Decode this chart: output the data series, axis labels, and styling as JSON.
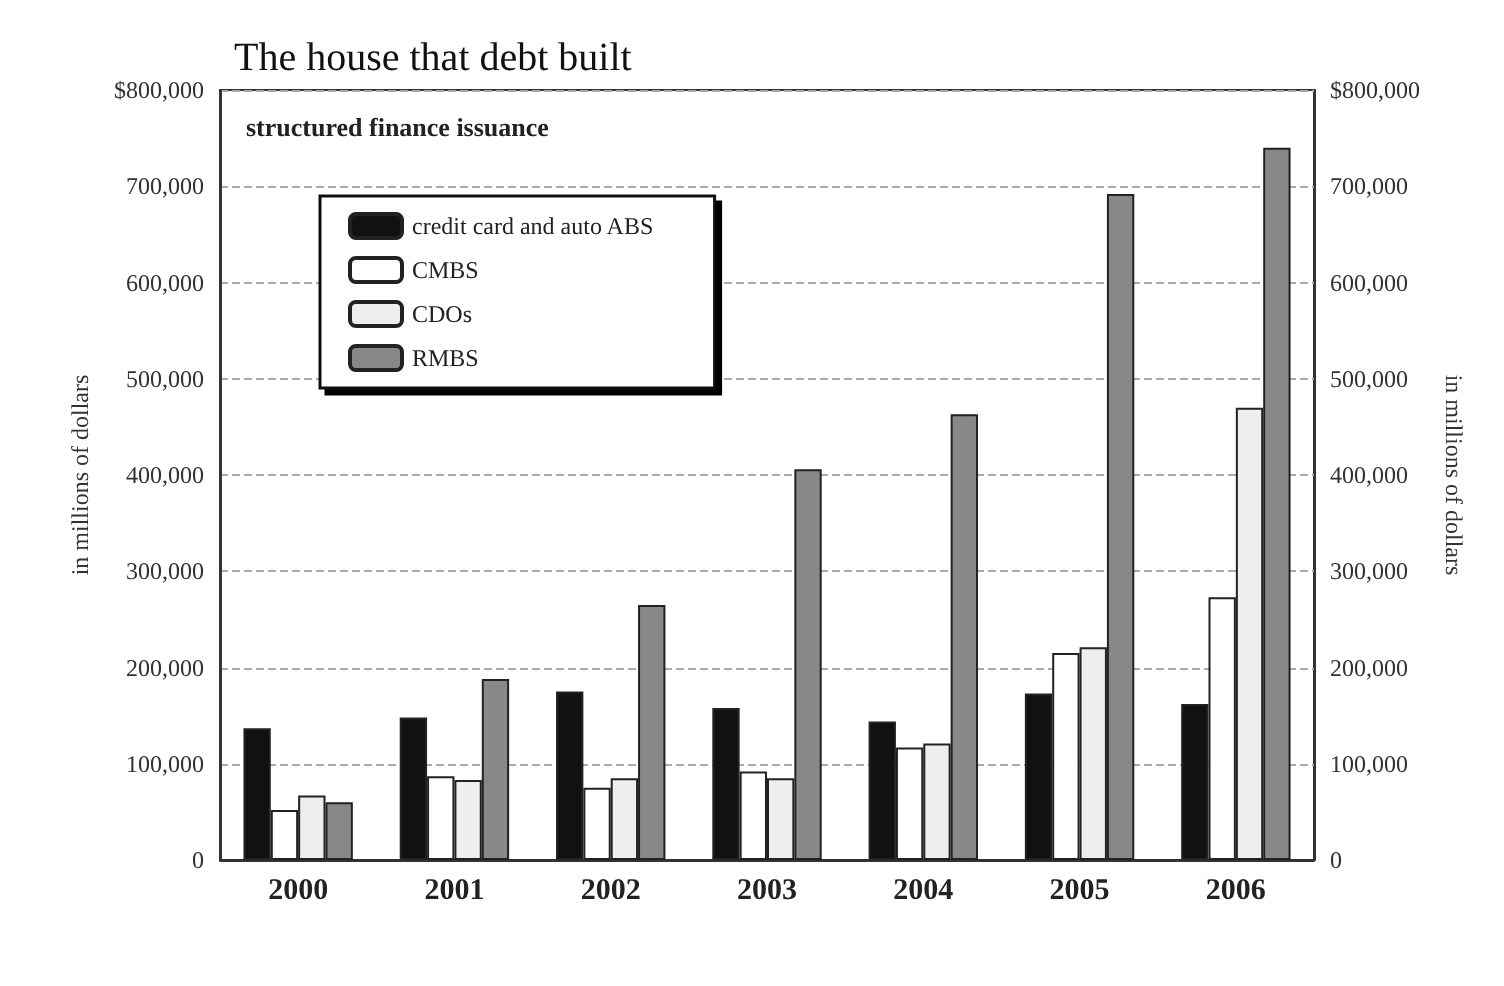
{
  "chart_data": {
    "type": "bar",
    "title": "The house that debt built",
    "subtitle": "structured finance issuance",
    "ylabel": "in millions of dollars",
    "y2label": "in millions of dollars",
    "categories": [
      "2000",
      "2001",
      "2002",
      "2003",
      "2004",
      "2005",
      "2006"
    ],
    "series": [
      {
        "name": "credit card and auto ABS",
        "color": "#111111",
        "values": [
          137000,
          148000,
          175000,
          158000,
          144000,
          173000,
          162000
        ]
      },
      {
        "name": "CMBS",
        "color": "#ffffff",
        "values": [
          52000,
          87000,
          75000,
          92000,
          117000,
          215000,
          273000
        ]
      },
      {
        "name": "CDOs",
        "color": "#eeeeee",
        "values": [
          67000,
          83000,
          85000,
          85000,
          121000,
          221000,
          470000
        ]
      },
      {
        "name": "RMBS",
        "color": "#888888",
        "values": [
          60000,
          188000,
          265000,
          406000,
          463000,
          692000,
          740000
        ]
      }
    ],
    "ylim": [
      0,
      800000
    ],
    "yticks": [
      0,
      {
        "value": 100000,
        "label": "100,000"
      },
      {
        "value": 200000,
        "label": "200,000"
      },
      {
        "value": 300000,
        "label": "300,000"
      },
      {
        "value": 400000,
        "label": "400,000"
      },
      {
        "value": 500000,
        "label": "500,000"
      },
      {
        "value": 600000,
        "label": "600,000"
      },
      {
        "value": 700000,
        "label": "700,000"
      },
      {
        "value": 800000,
        "label": "$800,000"
      }
    ],
    "y2lim": [
      0,
      800000
    ],
    "y2ticks": [
      0,
      {
        "value": 100000,
        "label": "100,000"
      },
      {
        "value": 200000,
        "label": "200,000"
      },
      {
        "value": 300000,
        "label": "300,000"
      },
      {
        "value": 400000,
        "label": "400,000"
      },
      {
        "value": 500000,
        "label": "500,000"
      },
      {
        "value": 600000,
        "label": "600,000"
      },
      {
        "value": 700000,
        "label": "700,000"
      },
      {
        "value": 800000,
        "label": "$800,000"
      }
    ],
    "grid": "y",
    "legend": "top left"
  }
}
